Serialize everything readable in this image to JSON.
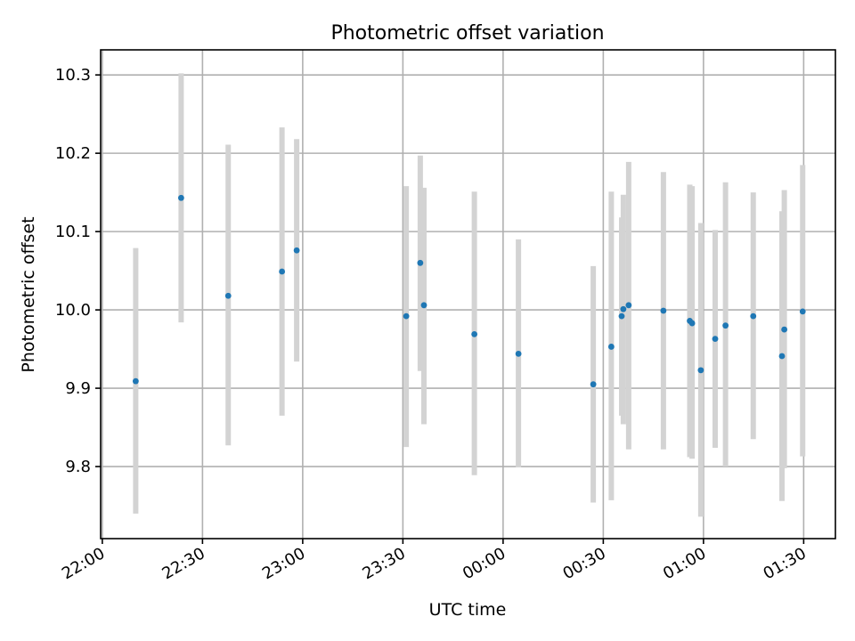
{
  "chart_data": {
    "type": "scatter",
    "title": "Photometric offset variation",
    "xlabel": "UTC time",
    "ylabel": "Photometric offset",
    "x_tick_labels": [
      "22:00",
      "22:30",
      "23:00",
      "23:30",
      "00:00",
      "00:30",
      "01:00",
      "01:30"
    ],
    "x_tick_minutes": [
      0,
      30,
      60,
      90,
      120,
      150,
      180,
      210
    ],
    "xlim_minutes": [
      -0.5,
      219.5
    ],
    "y_ticks": [
      9.8,
      9.9,
      10.0,
      10.1,
      10.2,
      10.3
    ],
    "y_tick_labels": [
      "9.8",
      "9.9",
      "10.0",
      "10.1",
      "10.2",
      "10.3"
    ],
    "ylim": [
      9.708,
      10.332
    ],
    "grid": true,
    "series": [
      {
        "name": "Photometric offset",
        "color": "#1f77b4",
        "errorbar_color": "#d3d3d3",
        "points": [
          {
            "t": 10.0,
            "y": 9.909,
            "ylow": 9.74,
            "yhigh": 10.079
          },
          {
            "t": 23.6,
            "y": 10.143,
            "ylow": 9.984,
            "yhigh": 10.302
          },
          {
            "t": 37.7,
            "y": 10.018,
            "ylow": 9.827,
            "yhigh": 10.211
          },
          {
            "t": 53.8,
            "y": 10.049,
            "ylow": 9.865,
            "yhigh": 10.233
          },
          {
            "t": 58.2,
            "y": 10.076,
            "ylow": 9.934,
            "yhigh": 10.218
          },
          {
            "t": 91.0,
            "y": 9.992,
            "ylow": 9.825,
            "yhigh": 10.158
          },
          {
            "t": 95.2,
            "y": 10.06,
            "ylow": 9.922,
            "yhigh": 10.197
          },
          {
            "t": 96.3,
            "y": 10.006,
            "ylow": 9.854,
            "yhigh": 10.156
          },
          {
            "t": 111.4,
            "y": 9.969,
            "ylow": 9.789,
            "yhigh": 10.151
          },
          {
            "t": 124.6,
            "y": 9.944,
            "ylow": 9.799,
            "yhigh": 10.09
          },
          {
            "t": 147.0,
            "y": 9.905,
            "ylow": 9.754,
            "yhigh": 10.056
          },
          {
            "t": 152.4,
            "y": 9.953,
            "ylow": 9.757,
            "yhigh": 10.151
          },
          {
            "t": 155.5,
            "y": 9.992,
            "ylow": 9.865,
            "yhigh": 10.118
          },
          {
            "t": 156.0,
            "y": 10.001,
            "ylow": 9.854,
            "yhigh": 10.147
          },
          {
            "t": 157.6,
            "y": 10.006,
            "ylow": 9.822,
            "yhigh": 10.189
          },
          {
            "t": 168.0,
            "y": 9.999,
            "ylow": 9.822,
            "yhigh": 10.176
          },
          {
            "t": 175.9,
            "y": 9.986,
            "ylow": 9.812,
            "yhigh": 10.16
          },
          {
            "t": 176.6,
            "y": 9.983,
            "ylow": 9.81,
            "yhigh": 10.158
          },
          {
            "t": 179.2,
            "y": 9.923,
            "ylow": 9.736,
            "yhigh": 10.111
          },
          {
            "t": 183.5,
            "y": 9.963,
            "ylow": 9.824,
            "yhigh": 10.102
          },
          {
            "t": 186.6,
            "y": 9.98,
            "ylow": 9.8,
            "yhigh": 10.163
          },
          {
            "t": 194.9,
            "y": 9.992,
            "ylow": 9.835,
            "yhigh": 10.15
          },
          {
            "t": 203.5,
            "y": 9.941,
            "ylow": 9.756,
            "yhigh": 10.126
          },
          {
            "t": 204.2,
            "y": 9.975,
            "ylow": 9.798,
            "yhigh": 10.153
          },
          {
            "t": 209.7,
            "y": 9.998,
            "ylow": 9.813,
            "yhigh": 10.185
          }
        ]
      }
    ]
  }
}
